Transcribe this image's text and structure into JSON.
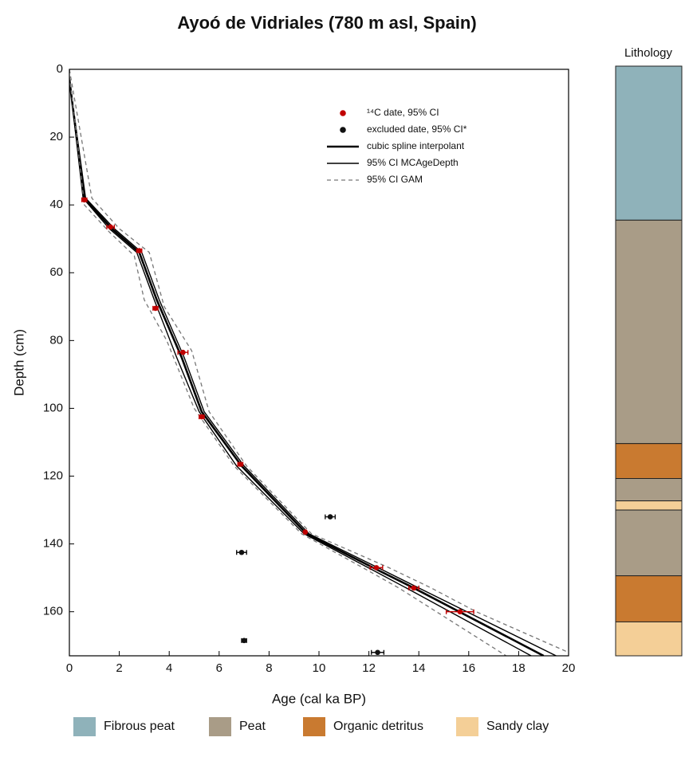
{
  "chart_data": {
    "type": "age-depth",
    "title": "Ayoó de Vidriales (780 m asl, Spain)",
    "xlabel": "Age (cal ka BP)",
    "ylabel": "Depth (cm)",
    "xlim": [
      0,
      20
    ],
    "ylim": [
      0,
      173
    ],
    "y_inverted": true,
    "xticks": [
      0,
      2,
      4,
      6,
      8,
      10,
      12,
      14,
      16,
      18,
      20
    ],
    "yticks": [
      0,
      20,
      40,
      60,
      80,
      100,
      120,
      140,
      160
    ],
    "series": [
      {
        "name": "¹⁴C date, 95% CI",
        "kind": "points",
        "color": "#c00000",
        "x": [
          0.6,
          1.65,
          2.8,
          3.45,
          4.55,
          5.3,
          6.85,
          9.45,
          12.3,
          13.8,
          15.65
        ],
        "y": [
          38.5,
          46.5,
          53.5,
          70.5,
          83.5,
          102.5,
          116.5,
          136.5,
          147,
          153,
          160
        ],
        "xerr": [
          0.1,
          0.15,
          0.1,
          0.1,
          0.2,
          0.1,
          0.1,
          0.05,
          0.25,
          0.2,
          0.55
        ]
      },
      {
        "name": "excluded date, 95% CI*",
        "kind": "points",
        "color": "#111111",
        "x": [
          10.45,
          6.9,
          7.0,
          12.35
        ],
        "y": [
          132,
          142.5,
          168.5,
          172
        ],
        "xerr": [
          0.2,
          0.2,
          0.1,
          0.25
        ]
      },
      {
        "name": "cubic spline interpolant",
        "kind": "lines",
        "color": "#000000",
        "width": 2.6,
        "dash": false,
        "lines": [
          {
            "x": [
              0,
              0.6,
              1.7,
              2.8,
              3.5,
              4.5,
              5.3,
              6.9,
              9.5,
              12.3,
              13.8,
              19
            ],
            "y": [
              3,
              38,
              47,
              54,
              68,
              85,
              101,
              117,
              137,
              147.5,
              153,
              173
            ]
          }
        ]
      },
      {
        "name": "95% CI MCAgeDepth",
        "kind": "lines",
        "color": "#000000",
        "width": 1.4,
        "dash": false,
        "lines": [
          {
            "x": [
              0,
              0.55,
              1.6,
              2.7,
              3.4,
              4.3,
              5.2,
              6.7,
              9.4,
              12.1,
              13.5,
              18.5
            ],
            "y": [
              3,
              38,
              47,
              54,
              68,
              85,
              101,
              117,
              137,
              147.5,
              153,
              173
            ]
          },
          {
            "x": [
              0,
              0.65,
              1.8,
              2.9,
              3.6,
              4.6,
              5.4,
              7.0,
              9.6,
              12.5,
              14.0,
              19.5
            ],
            "y": [
              3,
              38,
              47,
              54,
              68,
              85,
              101,
              117,
              137,
              147.5,
              153,
              173
            ]
          }
        ]
      },
      {
        "name": "95% CI GAM",
        "kind": "lines",
        "color": "#777777",
        "width": 1.3,
        "dash": true,
        "lines": [
          {
            "x": [
              0,
              0.3,
              0.6,
              1.6,
              2.6,
              3.0,
              3.9,
              5.0,
              6.6,
              9.3,
              12.0,
              13.2,
              17.5
            ],
            "y": [
              2,
              20,
              40,
              48,
              55,
              68,
              80,
              100,
              117,
              137,
              148,
              153,
              173
            ]
          },
          {
            "x": [
              0,
              0.9,
              2.0,
              3.2,
              3.8,
              4.9,
              5.6,
              7.1,
              9.7,
              12.8,
              14.5,
              16.3,
              20
            ],
            "y": [
              0,
              38,
              47,
              54,
              70,
              83,
              101,
              117,
              137,
              147,
              153,
              160,
              172
            ]
          }
        ]
      }
    ],
    "lithology": {
      "title": "Lithology",
      "units": [
        {
          "name": "Fibrous peat",
          "color": "#8fb2ba"
        },
        {
          "name": "Peat",
          "color": "#a99c87"
        },
        {
          "name": "Organic detritus",
          "color": "#c97a30"
        },
        {
          "name": "Sandy clay",
          "color": "#f4cf97"
        }
      ],
      "layers": [
        {
          "unit": 0,
          "top": 0,
          "bottom": 44.5
        },
        {
          "unit": 1,
          "top": 44.5,
          "bottom": 110.4
        },
        {
          "unit": 2,
          "top": 110.4,
          "bottom": 120.7
        },
        {
          "unit": 1,
          "top": 120.7,
          "bottom": 127.3
        },
        {
          "unit": 3,
          "top": 127.3,
          "bottom": 130
        },
        {
          "unit": 1,
          "top": 130,
          "bottom": 149.4
        },
        {
          "unit": 2,
          "top": 149.4,
          "bottom": 163
        },
        {
          "unit": 3,
          "top": 163,
          "bottom": 173
        }
      ]
    }
  }
}
